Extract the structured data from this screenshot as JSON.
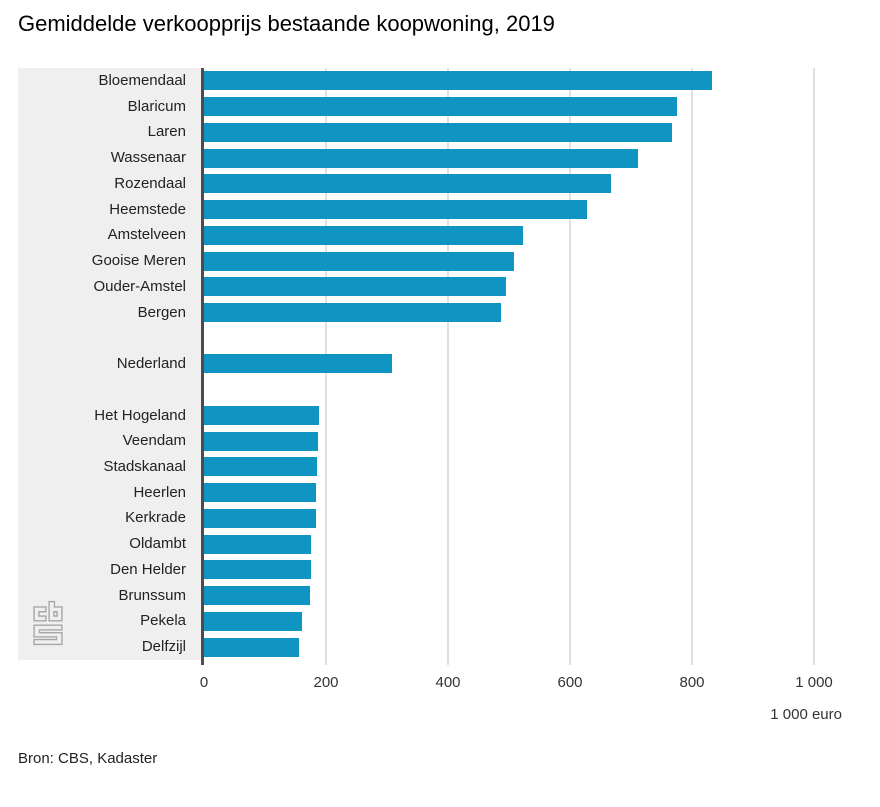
{
  "page": {
    "title": "Gemiddelde verkoopprijs bestaande koopwoning, 2019",
    "source": "Bron: CBS, Kadaster"
  },
  "chart_data": {
    "type": "bar",
    "orientation": "horizontal",
    "title": "Gemiddelde verkoopprijs bestaande koopwoning, 2019",
    "unit_label": "1 000 euro",
    "xlim": [
      0,
      1000
    ],
    "x_ticks": [
      0,
      200,
      400,
      600,
      800,
      1000
    ],
    "x_tick_labels": [
      "0",
      "200",
      "400",
      "600",
      "800",
      "1 000"
    ],
    "grid": "vertical",
    "legend": "none",
    "categories": [
      "Bloemendaal",
      "Blaricum",
      "Laren",
      "Wassenaar",
      "Rozendaal",
      "Heemstede",
      "Amstelveen",
      "Gooise Meren",
      "Ouder-Amstel",
      "Bergen",
      "Nederland",
      "Het Hogeland",
      "Veendam",
      "Stadskanaal",
      "Heerlen",
      "Kerkrade",
      "Oldambt",
      "Den Helder",
      "Brunssum",
      "Pekela",
      "Delfzijl"
    ],
    "values": [
      832,
      775,
      767,
      711,
      667,
      628,
      523,
      509,
      495,
      487,
      308,
      189,
      187,
      186,
      184,
      183,
      176,
      175,
      173,
      161,
      156
    ],
    "group_breaks_after": [
      "Bergen",
      "Nederland"
    ],
    "source": "Bron: CBS, Kadaster"
  },
  "colors": {
    "bar": "#1095c3",
    "label_panel_bg": "#efefef",
    "axis_line": "#4d4d4d",
    "gridline": "#e0e0e0",
    "text": "#222222",
    "logo": "#a6a6a6"
  }
}
